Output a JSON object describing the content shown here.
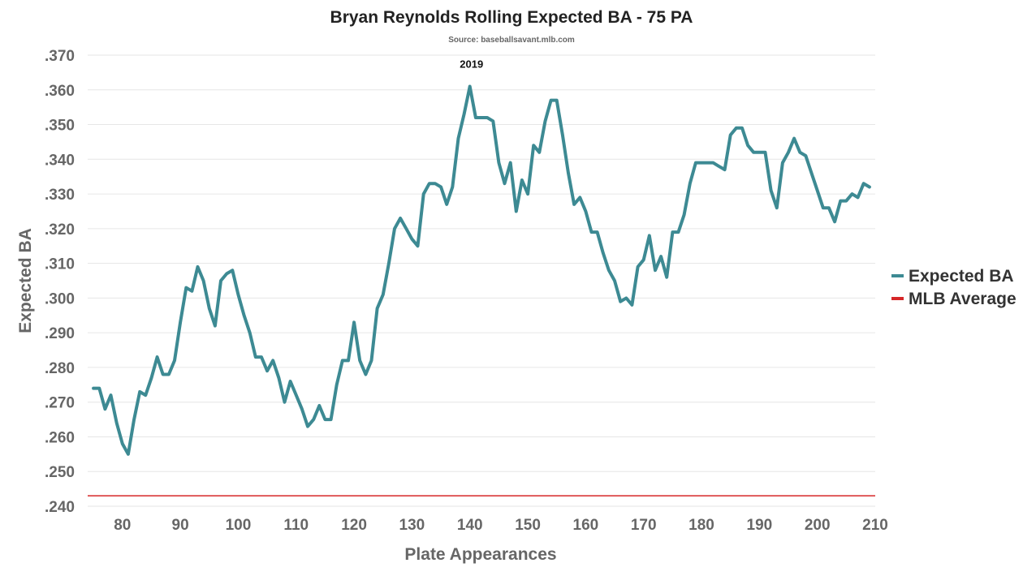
{
  "chart_data": {
    "type": "line",
    "title": "Bryan Reynolds Rolling Expected BA - 75 PA",
    "subtitle": "Source: baseballsavant.mlb.com",
    "xlabel": "Plate Appearances",
    "ylabel": "Expected BA",
    "xlim": [
      74,
      210
    ],
    "ylim": [
      0.24,
      0.37
    ],
    "xticks": [
      80,
      90,
      100,
      110,
      120,
      130,
      140,
      150,
      160,
      170,
      180,
      190,
      200,
      210
    ],
    "xtick_labels": [
      "80",
      "90",
      "100",
      "110",
      "120",
      "130",
      "140",
      "150",
      "160",
      "170",
      "180",
      "190",
      "200",
      "210"
    ],
    "yticks": [
      0.24,
      0.25,
      0.26,
      0.27,
      0.28,
      0.29,
      0.3,
      0.31,
      0.32,
      0.33,
      0.34,
      0.35,
      0.36,
      0.37
    ],
    "ytick_labels": [
      ".240",
      ".250",
      ".260",
      ".270",
      ".280",
      ".290",
      ".300",
      ".310",
      ".320",
      ".330",
      ".340",
      ".350",
      ".360",
      ".370"
    ],
    "grid": true,
    "legend_position": "right",
    "annotations": [
      {
        "text": "2019",
        "x": 140,
        "y": 0.3675
      }
    ],
    "series": [
      {
        "name": "Expected BA",
        "color": "#3d8a93",
        "x": [
          75,
          76,
          77,
          78,
          79,
          80,
          81,
          82,
          83,
          84,
          85,
          86,
          87,
          88,
          89,
          90,
          91,
          92,
          93,
          94,
          95,
          96,
          97,
          98,
          99,
          100,
          101,
          102,
          103,
          104,
          105,
          106,
          107,
          108,
          109,
          110,
          111,
          112,
          113,
          114,
          115,
          116,
          117,
          118,
          119,
          120,
          121,
          122,
          123,
          124,
          125,
          126,
          127,
          128,
          129,
          130,
          131,
          132,
          133,
          134,
          135,
          136,
          137,
          138,
          139,
          140,
          141,
          142,
          143,
          144,
          145,
          146,
          147,
          148,
          149,
          150,
          151,
          152,
          153,
          154,
          155,
          156,
          157,
          158,
          159,
          160,
          161,
          162,
          163,
          164,
          165,
          166,
          167,
          168,
          169,
          170,
          171,
          172,
          173,
          174,
          175,
          176,
          177,
          178,
          179,
          180,
          181,
          182,
          183,
          184,
          185,
          186,
          187,
          188,
          189,
          190,
          191,
          192,
          193,
          194,
          195,
          196,
          197,
          198,
          199,
          200,
          201,
          202,
          203,
          204,
          205,
          206,
          207,
          208,
          209
        ],
        "values": [
          0.274,
          0.274,
          0.268,
          0.272,
          0.264,
          0.258,
          0.255,
          0.265,
          0.273,
          0.272,
          0.277,
          0.283,
          0.278,
          0.278,
          0.282,
          0.293,
          0.303,
          0.302,
          0.309,
          0.305,
          0.297,
          0.292,
          0.305,
          0.307,
          0.308,
          0.301,
          0.295,
          0.29,
          0.283,
          0.283,
          0.279,
          0.282,
          0.277,
          0.27,
          0.276,
          0.272,
          0.268,
          0.263,
          0.265,
          0.269,
          0.265,
          0.265,
          0.275,
          0.282,
          0.282,
          0.293,
          0.282,
          0.278,
          0.282,
          0.297,
          0.301,
          0.31,
          0.32,
          0.323,
          0.32,
          0.317,
          0.315,
          0.33,
          0.333,
          0.333,
          0.332,
          0.327,
          0.332,
          0.346,
          0.353,
          0.361,
          0.352,
          0.352,
          0.352,
          0.351,
          0.339,
          0.333,
          0.339,
          0.325,
          0.334,
          0.33,
          0.344,
          0.342,
          0.351,
          0.357,
          0.357,
          0.347,
          0.336,
          0.327,
          0.329,
          0.325,
          0.319,
          0.319,
          0.313,
          0.308,
          0.305,
          0.299,
          0.3,
          0.298,
          0.309,
          0.311,
          0.318,
          0.308,
          0.312,
          0.306,
          0.319,
          0.319,
          0.324,
          0.333,
          0.339,
          0.339,
          0.339,
          0.339,
          0.338,
          0.337,
          0.347,
          0.349,
          0.349,
          0.344,
          0.342,
          0.342,
          0.342,
          0.331,
          0.326,
          0.339,
          0.342,
          0.346,
          0.342,
          0.341,
          0.336,
          0.331,
          0.326,
          0.326,
          0.322,
          0.328,
          0.328,
          0.33,
          0.329,
          0.333,
          0.332
        ]
      },
      {
        "name": "MLB Average",
        "color": "#d62728",
        "x": [
          74,
          210
        ],
        "values": [
          0.243,
          0.243
        ]
      }
    ]
  }
}
